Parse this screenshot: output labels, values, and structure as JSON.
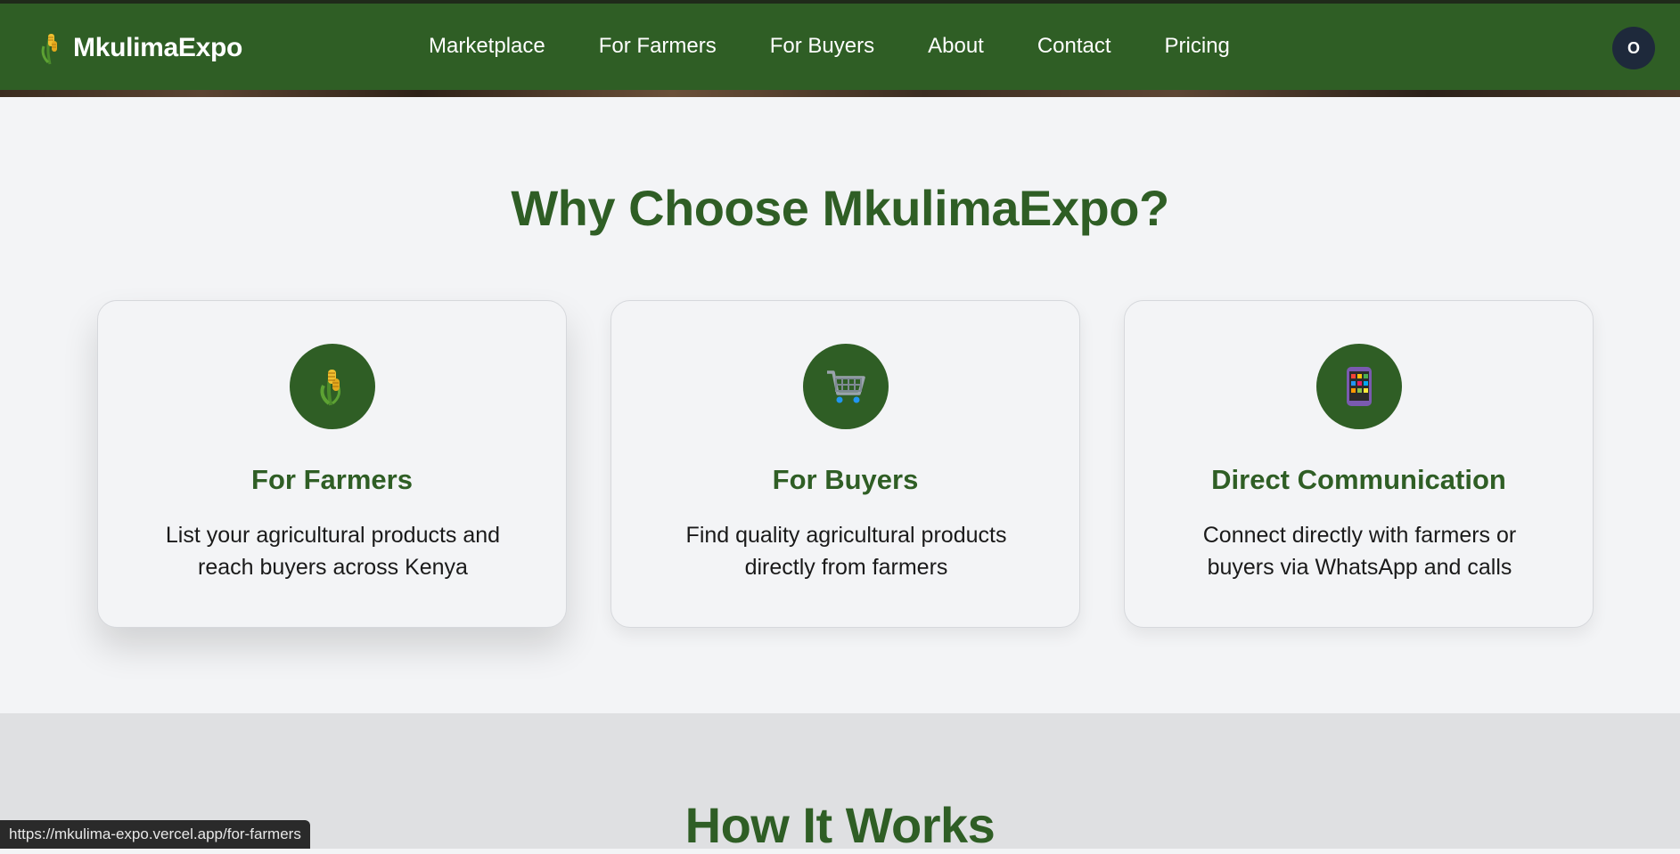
{
  "brand": {
    "name": "MkulimaExpo",
    "icon": "maize-icon"
  },
  "nav": {
    "links": [
      "Marketplace",
      "For Farmers",
      "For Buyers",
      "About",
      "Contact",
      "Pricing"
    ]
  },
  "user": {
    "avatar_initial": "O"
  },
  "why": {
    "title": "Why Choose MkulimaExpo?",
    "cards": [
      {
        "icon": "maize-icon",
        "title": "For Farmers",
        "description": "List your agricultural products and reach buyers across Kenya"
      },
      {
        "icon": "shopping-cart-icon",
        "title": "For Buyers",
        "description": "Find quality agricultural products directly from farmers"
      },
      {
        "icon": "mobile-phone-icon",
        "title": "Direct Communication",
        "description": "Connect directly with farmers or buyers via WhatsApp and calls"
      }
    ]
  },
  "how": {
    "title": "How It Works"
  },
  "status_bar": {
    "url": "https://mkulima-expo.vercel.app/for-farmers"
  },
  "colors": {
    "primary": "#2f5e25",
    "background": "#f3f4f6",
    "section_alt": "#dfe0e2",
    "avatar": "#1e293b"
  }
}
